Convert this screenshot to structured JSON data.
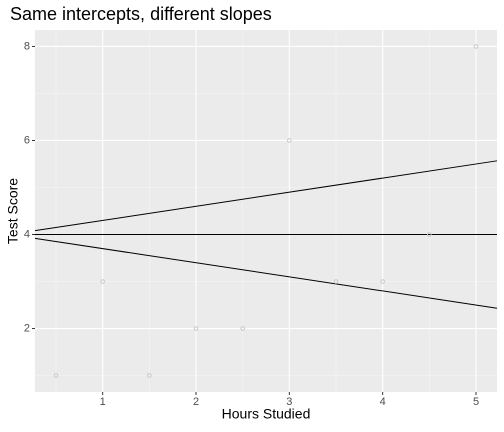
{
  "chart_data": {
    "type": "scatter",
    "title": "Same intercepts, different slopes",
    "x_label": "Hours Studied",
    "y_label": "Test Score",
    "x": [
      0.5,
      1,
      1.5,
      2,
      2.5,
      3,
      3.5,
      4,
      4.5,
      5
    ],
    "values": [
      1,
      3,
      1,
      2,
      2,
      6,
      3,
      3,
      4,
      8
    ],
    "color": "#c8c8c8",
    "lines": [
      {
        "intercept": 4,
        "slope": 0.3,
        "color": "#000000"
      },
      {
        "intercept": 4,
        "slope": 0,
        "color": "#000000"
      },
      {
        "intercept": 4,
        "slope": -0.3,
        "color": "#000000"
      }
    ],
    "xlim": [
      0.275,
      5.225
    ],
    "ylim": [
      0.65,
      8.35
    ],
    "xticks": [
      1,
      2,
      3,
      4,
      5
    ],
    "yticks": [
      2,
      4,
      6,
      8
    ],
    "grid": true
  }
}
